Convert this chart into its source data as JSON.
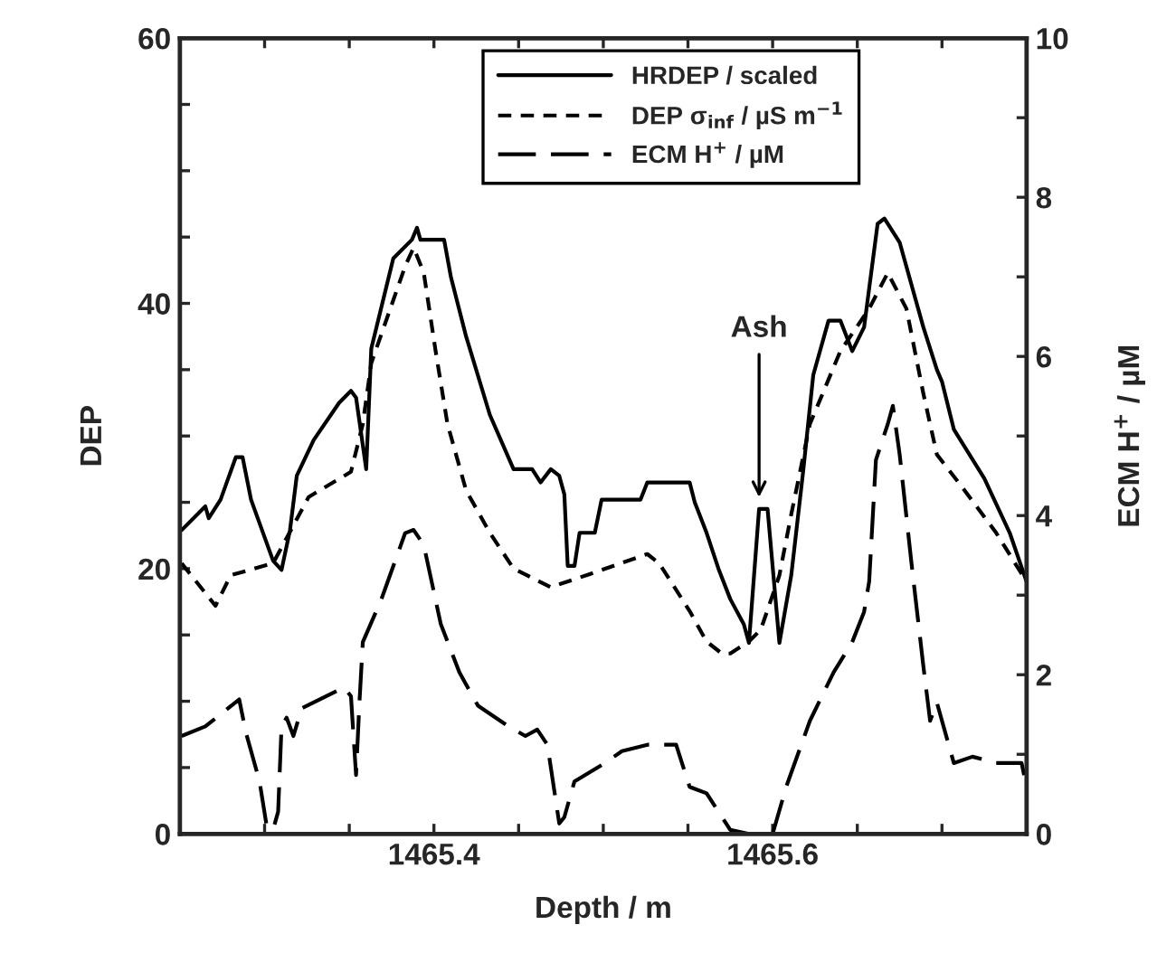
{
  "chart_data": {
    "type": "line",
    "xlabel": "Depth / m",
    "ylabel": "DEP",
    "y2label": "ECM H$^{+}$ / µM",
    "xlim": [
      1465.25,
      1465.75
    ],
    "xticks": [
      {
        "value": 1465.3,
        "label": null
      },
      {
        "value": 1465.35,
        "label": null
      },
      1465.4,
      {
        "value": 1465.45,
        "label": null
      },
      {
        "value": 1465.5,
        "label": null
      },
      {
        "value": 1465.55,
        "label": null
      },
      1465.6,
      {
        "value": 1465.65,
        "label": null
      },
      {
        "value": 1465.7,
        "label": null
      }
    ],
    "ylim": [
      0,
      60
    ],
    "yticks": [
      0,
      {
        "value": 5,
        "label": null
      },
      {
        "value": 10,
        "label": null
      },
      {
        "value": 15,
        "label": null
      },
      20,
      {
        "value": 25,
        "label": null
      },
      {
        "value": 30,
        "label": null
      },
      {
        "value": 35,
        "label": null
      },
      40,
      {
        "value": 45,
        "label": null
      },
      {
        "value": 50,
        "label": null
      },
      {
        "value": 55,
        "label": null
      },
      60
    ],
    "y2lim": [
      0,
      10
    ],
    "y2ticks": [
      0,
      {
        "value": 1,
        "label": null
      },
      2,
      {
        "value": 3,
        "label": null
      },
      4,
      {
        "value": 5,
        "label": null
      },
      6,
      {
        "value": 7,
        "label": null
      },
      8,
      {
        "value": 9,
        "label": null
      },
      10
    ],
    "legend": "top",
    "grid": false,
    "marker": "none",
    "annotations": [
      {
        "text": "Ash",
        "x": 1465.592,
        "y": 25
      }
    ],
    "series": [
      {
        "name": "HRDEP / scaled",
        "color": "#000000",
        "line_style": "solid",
        "x": [
          1465.251,
          1465.265,
          1465.267,
          1465.274,
          1465.283,
          1465.287,
          1465.292,
          1465.305,
          1465.31,
          1465.315,
          1465.319,
          1465.329,
          1465.344,
          1465.351,
          1465.354,
          1465.36,
          1465.363,
          1465.376,
          1465.387,
          1465.39,
          1465.392,
          1465.406,
          1465.41,
          1465.419,
          1465.433,
          1465.447,
          1465.458,
          1465.463,
          1465.469,
          1465.474,
          1465.477,
          1465.479,
          1465.483,
          1465.486,
          1465.495,
          1465.499,
          1465.522,
          1465.526,
          1465.551,
          1465.554,
          1465.561,
          1465.568,
          1465.575,
          1465.583,
          1465.586,
          1465.592,
          1465.597,
          1465.604,
          1465.611,
          1465.618,
          1465.624,
          1465.633,
          1465.64,
          1465.647,
          1465.654,
          1465.662,
          1465.666,
          1465.675,
          1465.689,
          1465.697,
          1465.7,
          1465.707,
          1465.725,
          1465.74,
          1465.75
        ],
        "values": [
          22.9,
          24.7,
          23.8,
          25.2,
          28.4,
          28.4,
          25.2,
          20.6,
          19.9,
          22.9,
          27.0,
          29.7,
          32.5,
          33.4,
          32.9,
          27.5,
          36.6,
          43.4,
          44.8,
          45.7,
          44.8,
          44.8,
          42.0,
          37.5,
          31.6,
          27.5,
          27.5,
          26.5,
          27.5,
          27.0,
          25.6,
          20.2,
          20.2,
          22.7,
          22.7,
          25.2,
          25.2,
          26.5,
          26.5,
          25.0,
          22.7,
          20.0,
          17.7,
          15.8,
          14.4,
          24.5,
          24.5,
          14.4,
          19.5,
          27.3,
          34.6,
          38.7,
          38.7,
          36.4,
          38.2,
          46.0,
          46.4,
          44.6,
          38.2,
          35.0,
          34.1,
          30.5,
          26.8,
          22.7,
          19.0
        ]
      },
      {
        "name": "DEP σ$_{inf}$ / µS m$^{−1}$",
        "color": "#000000",
        "line_style": "dotted",
        "x": [
          1465.251,
          1465.271,
          1465.28,
          1465.305,
          1465.326,
          1465.351,
          1465.358,
          1465.363,
          1465.383,
          1465.388,
          1465.394,
          1465.401,
          1465.408,
          1465.419,
          1465.433,
          1465.447,
          1465.469,
          1465.49,
          1465.526,
          1465.533,
          1465.551,
          1465.561,
          1465.57,
          1465.575,
          1465.586,
          1465.593,
          1465.604,
          1465.611,
          1465.622,
          1465.64,
          1465.657,
          1465.668,
          1465.679,
          1465.689,
          1465.697,
          1465.711,
          1465.732,
          1465.75
        ],
        "values": [
          20.4,
          17.2,
          19.5,
          20.4,
          25.4,
          27.3,
          30.9,
          35.5,
          42.8,
          44.2,
          42.3,
          36.4,
          30.9,
          25.9,
          22.7,
          20.0,
          18.6,
          19.5,
          21.1,
          20.4,
          16.8,
          14.5,
          13.6,
          13.6,
          14.5,
          15.4,
          19.5,
          24.1,
          30.9,
          36.4,
          39.6,
          42.3,
          39.6,
          33.2,
          28.6,
          26.3,
          22.7,
          19.0
        ]
      },
      {
        "name": "ECM H$^{+}$ / µM",
        "color": "#000000",
        "line_style": "dashed",
        "axis": "y2",
        "x": [
          1465.251,
          1465.265,
          1465.285,
          1465.289,
          1465.297,
          1465.301,
          1465.305,
          1465.308,
          1465.31,
          1465.313,
          1465.317,
          1465.322,
          1465.347,
          1465.351,
          1465.354,
          1465.356,
          1465.358,
          1465.369,
          1465.383,
          1465.388,
          1465.394,
          1465.404,
          1465.415,
          1465.426,
          1465.444,
          1465.454,
          1465.461,
          1465.467,
          1465.474,
          1465.477,
          1465.483,
          1465.501,
          1465.511,
          1465.526,
          1465.543,
          1465.551,
          1465.561,
          1465.575,
          1465.586,
          1465.6,
          1465.608,
          1465.622,
          1465.636,
          1465.647,
          1465.654,
          1465.657,
          1465.661,
          1465.668,
          1465.671,
          1465.675,
          1465.682,
          1465.689,
          1465.693,
          1465.697,
          1465.707,
          1465.718,
          1465.732,
          1465.747,
          1465.75
        ],
        "values": [
          1.23,
          1.35,
          1.69,
          1.27,
          0.66,
          0.13,
          0.05,
          0.28,
          1.35,
          1.46,
          1.23,
          1.58,
          1.84,
          1.73,
          0.74,
          1.65,
          2.41,
          2.95,
          3.78,
          3.82,
          3.63,
          2.64,
          2.03,
          1.61,
          1.35,
          1.23,
          1.31,
          1.12,
          0.13,
          0.21,
          0.66,
          0.89,
          1.04,
          1.12,
          1.12,
          0.59,
          0.51,
          0.05,
          0.0,
          0.0,
          0.59,
          1.42,
          2.03,
          2.41,
          2.79,
          3.17,
          4.7,
          5.15,
          5.38,
          4.77,
          3.4,
          2.11,
          1.42,
          1.65,
          0.89,
          0.97,
          0.89,
          0.89,
          0.59
        ]
      }
    ]
  }
}
